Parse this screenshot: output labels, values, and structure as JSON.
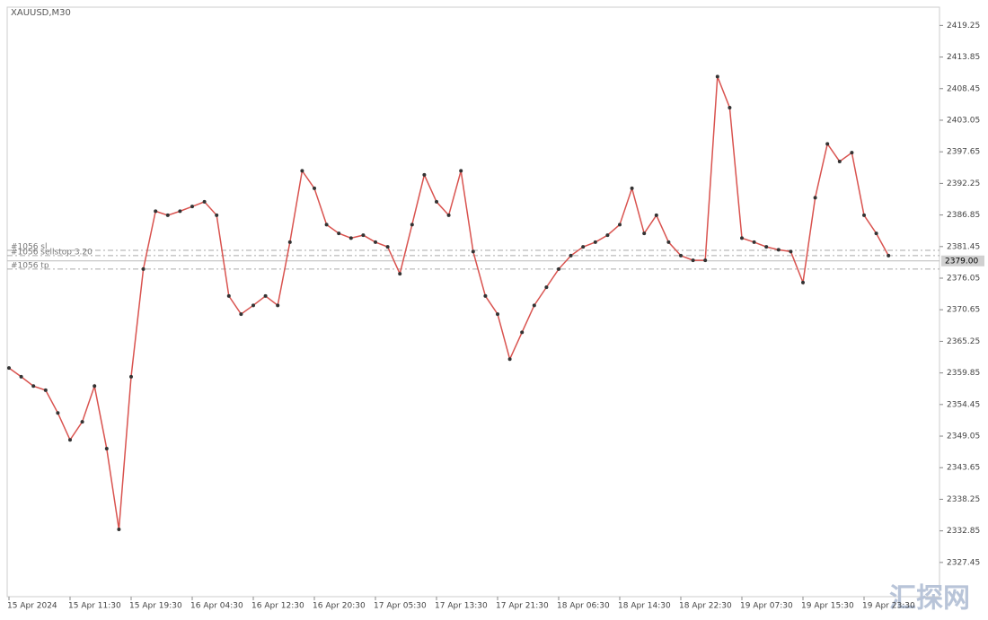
{
  "chart_data": {
    "type": "line",
    "title": "XAUUSD,M30",
    "color": "#d9534f",
    "categories": [
      "15 Apr 2024",
      null,
      null,
      null,
      null,
      "15 Apr 11:30",
      null,
      null,
      null,
      null,
      "15 Apr 19:30",
      null,
      null,
      null,
      null,
      "16 Apr 04:30",
      null,
      null,
      null,
      null,
      "16 Apr 12:30",
      null,
      null,
      null,
      null,
      "16 Apr 20:30",
      null,
      null,
      null,
      null,
      "17 Apr 05:30",
      null,
      null,
      null,
      null,
      "17 Apr 13:30",
      null,
      null,
      null,
      null,
      "17 Apr 21:30",
      null,
      null,
      null,
      null,
      "18 Apr 06:30",
      null,
      null,
      null,
      null,
      "18 Apr 14:30",
      null,
      null,
      null,
      null,
      "18 Apr 22:30",
      null,
      null,
      null,
      null,
      "19 Apr 07:30",
      null,
      null,
      null,
      null,
      "19 Apr 15:30",
      null,
      null,
      null,
      null,
      "19 Apr 23:30",
      null,
      null
    ],
    "values": [
      2360.7,
      2359.2,
      2357.6,
      2356.9,
      2353.0,
      2348.4,
      2351.5,
      2357.6,
      2346.9,
      2333.1,
      2359.2,
      2377.6,
      2387.5,
      2386.8,
      2387.5,
      2388.3,
      2389.1,
      2386.8,
      2373.0,
      2369.9,
      2371.4,
      2373.0,
      2371.4,
      2382.2,
      2394.4,
      2391.4,
      2385.2,
      2383.7,
      2382.9,
      2383.4,
      2382.2,
      2381.4,
      2376.8,
      2385.2,
      2393.7,
      2389.1,
      2386.8,
      2394.4,
      2380.6,
      2373.0,
      2369.9,
      2362.2,
      2366.8,
      2371.4,
      2374.5,
      2377.6,
      2379.9,
      2381.4,
      2382.2,
      2383.4,
      2385.2,
      2391.4,
      2383.7,
      2386.8,
      2382.2,
      2379.9,
      2379.1,
      2379.1,
      2410.5,
      2405.2,
      2382.9,
      2382.2,
      2381.4,
      2380.9,
      2380.6,
      2375.3,
      2389.8,
      2399.0,
      2396.0,
      2397.5,
      2386.8,
      2383.7,
      2379.9
    ],
    "ylim": [
      2321.6,
      2423.6
    ],
    "yticks": [
      {
        "value": 2419.25,
        "label": "2419.25"
      },
      {
        "value": 2413.85,
        "label": "2413.85"
      },
      {
        "value": 2408.45,
        "label": "2408.45"
      },
      {
        "value": 2403.05,
        "label": "2403.05"
      },
      2397.65,
      {
        "value": 2392.25,
        "label": "2392.25"
      },
      {
        "value": 2386.85,
        "label": "2386.85"
      },
      {
        "value": 2381.45,
        "label": "2381.45"
      },
      {
        "value": 2376.05,
        "label": "2376.05"
      },
      {
        "value": 2370.65,
        "label": "2370.65"
      },
      {
        "value": 2365.25,
        "label": "2365.25"
      },
      {
        "value": 2359.85,
        "label": "2359.85"
      },
      {
        "value": 2354.45,
        "label": "2354.45"
      },
      {
        "value": 2349.05,
        "label": "2349.05"
      },
      2343.65,
      {
        "value": 2338.25,
        "label": "2338.25"
      },
      {
        "value": 2332.85,
        "label": "2332.85"
      },
      {
        "value": 2327.45,
        "label": "2327.45"
      }
    ],
    "current_price": {
      "value": 2379,
      "label": "2379.00"
    },
    "order_lines": [
      {
        "label": "#1056 sl",
        "value": 2380.8
      },
      {
        "label": "#1056 sellstop 3.20",
        "value": 2379.9
      },
      {
        "label": "#1056 tp",
        "value": 2377.6
      }
    ],
    "watermark": "汇探网"
  }
}
